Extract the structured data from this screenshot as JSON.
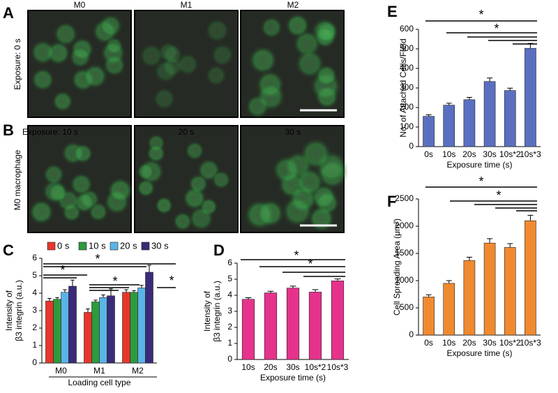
{
  "panel_labels": [
    "A",
    "B",
    "C",
    "D",
    "E",
    "F"
  ],
  "micrographs": {
    "column_titles": [
      "M0",
      "M1",
      "M2"
    ],
    "row_a_label": "Exposure: 0 s",
    "row_b_titles": [
      "Exposure: 10 s",
      "20 s",
      "30 s"
    ],
    "row_b_label": "M0 macrophage"
  },
  "chart_data": [
    {
      "type": "bar",
      "ylabel": [
        "Intensity of",
        "β3 integrin (a.u.)"
      ],
      "xlabel": "Loading cell type",
      "categories": [
        "M0",
        "M1",
        "M2"
      ],
      "series": [
        {
          "name": "0 s",
          "color": "#e8362c",
          "values": [
            3.55,
            2.9,
            4.05
          ],
          "errors": [
            0.15,
            0.2,
            0.15
          ]
        },
        {
          "name": "10 s",
          "color": "#2e9a3c",
          "values": [
            3.65,
            3.5,
            4.05
          ],
          "errors": [
            0.1,
            0.1,
            0.1
          ]
        },
        {
          "name": "20 s",
          "color": "#5ab4e6",
          "values": [
            4.05,
            3.75,
            4.3
          ],
          "errors": [
            0.15,
            0.15,
            0.15
          ]
        },
        {
          "name": "30 s",
          "color": "#3a2a78",
          "values": [
            4.4,
            3.85,
            5.2
          ],
          "errors": [
            0.35,
            0.4,
            0.4
          ]
        }
      ],
      "ylim": [
        0,
        6
      ],
      "yticks": [
        0,
        1,
        2,
        3,
        4,
        5,
        6
      ],
      "annotations": [
        "*",
        "*",
        "*",
        "*"
      ]
    },
    {
      "type": "bar",
      "ylabel": [
        "Intensity of",
        "β3 integrin (a.u.)"
      ],
      "xlabel": "Exposure time (s)",
      "categories": [
        "10s",
        "20s",
        "30s",
        "10s*2",
        "10s*3"
      ],
      "color": "#e5338c",
      "values": [
        3.75,
        4.15,
        4.45,
        4.2,
        4.9
      ],
      "errors": [
        0.1,
        0.1,
        0.12,
        0.15,
        0.12
      ],
      "ylim": [
        0,
        6
      ],
      "yticks": [
        0,
        1,
        2,
        3,
        4,
        5,
        6
      ],
      "annotations": [
        "*",
        "*"
      ]
    },
    {
      "type": "bar",
      "ylabel": [
        "No. of Attached Cells/Field"
      ],
      "xlabel": "Exposure time (s)",
      "categories": [
        "0s",
        "10s",
        "20s",
        "30s",
        "10s*2",
        "10s*3"
      ],
      "color": "#5a6fc0",
      "values": [
        155,
        212,
        240,
        333,
        287,
        503
      ],
      "errors": [
        8,
        10,
        12,
        18,
        12,
        25
      ],
      "ylim": [
        0,
        600
      ],
      "yticks": [
        0,
        100,
        200,
        300,
        400,
        500,
        600
      ],
      "annotations": [
        "*",
        "*"
      ]
    },
    {
      "type": "bar",
      "ylabel": [
        "Cell Spreading Area (μm²)"
      ],
      "xlabel": "Exposure time (s)",
      "categories": [
        "0s",
        "10s",
        "20s",
        "30s",
        "10s*2",
        "10s*3"
      ],
      "color": "#f08a30",
      "values": [
        700,
        950,
        1370,
        1690,
        1610,
        2100
      ],
      "errors": [
        40,
        50,
        60,
        80,
        70,
        100
      ],
      "ylim": [
        0,
        2500
      ],
      "yticks": [
        0,
        500,
        1000,
        1500,
        2000,
        2500
      ],
      "annotations": [
        "*",
        "*"
      ]
    }
  ]
}
